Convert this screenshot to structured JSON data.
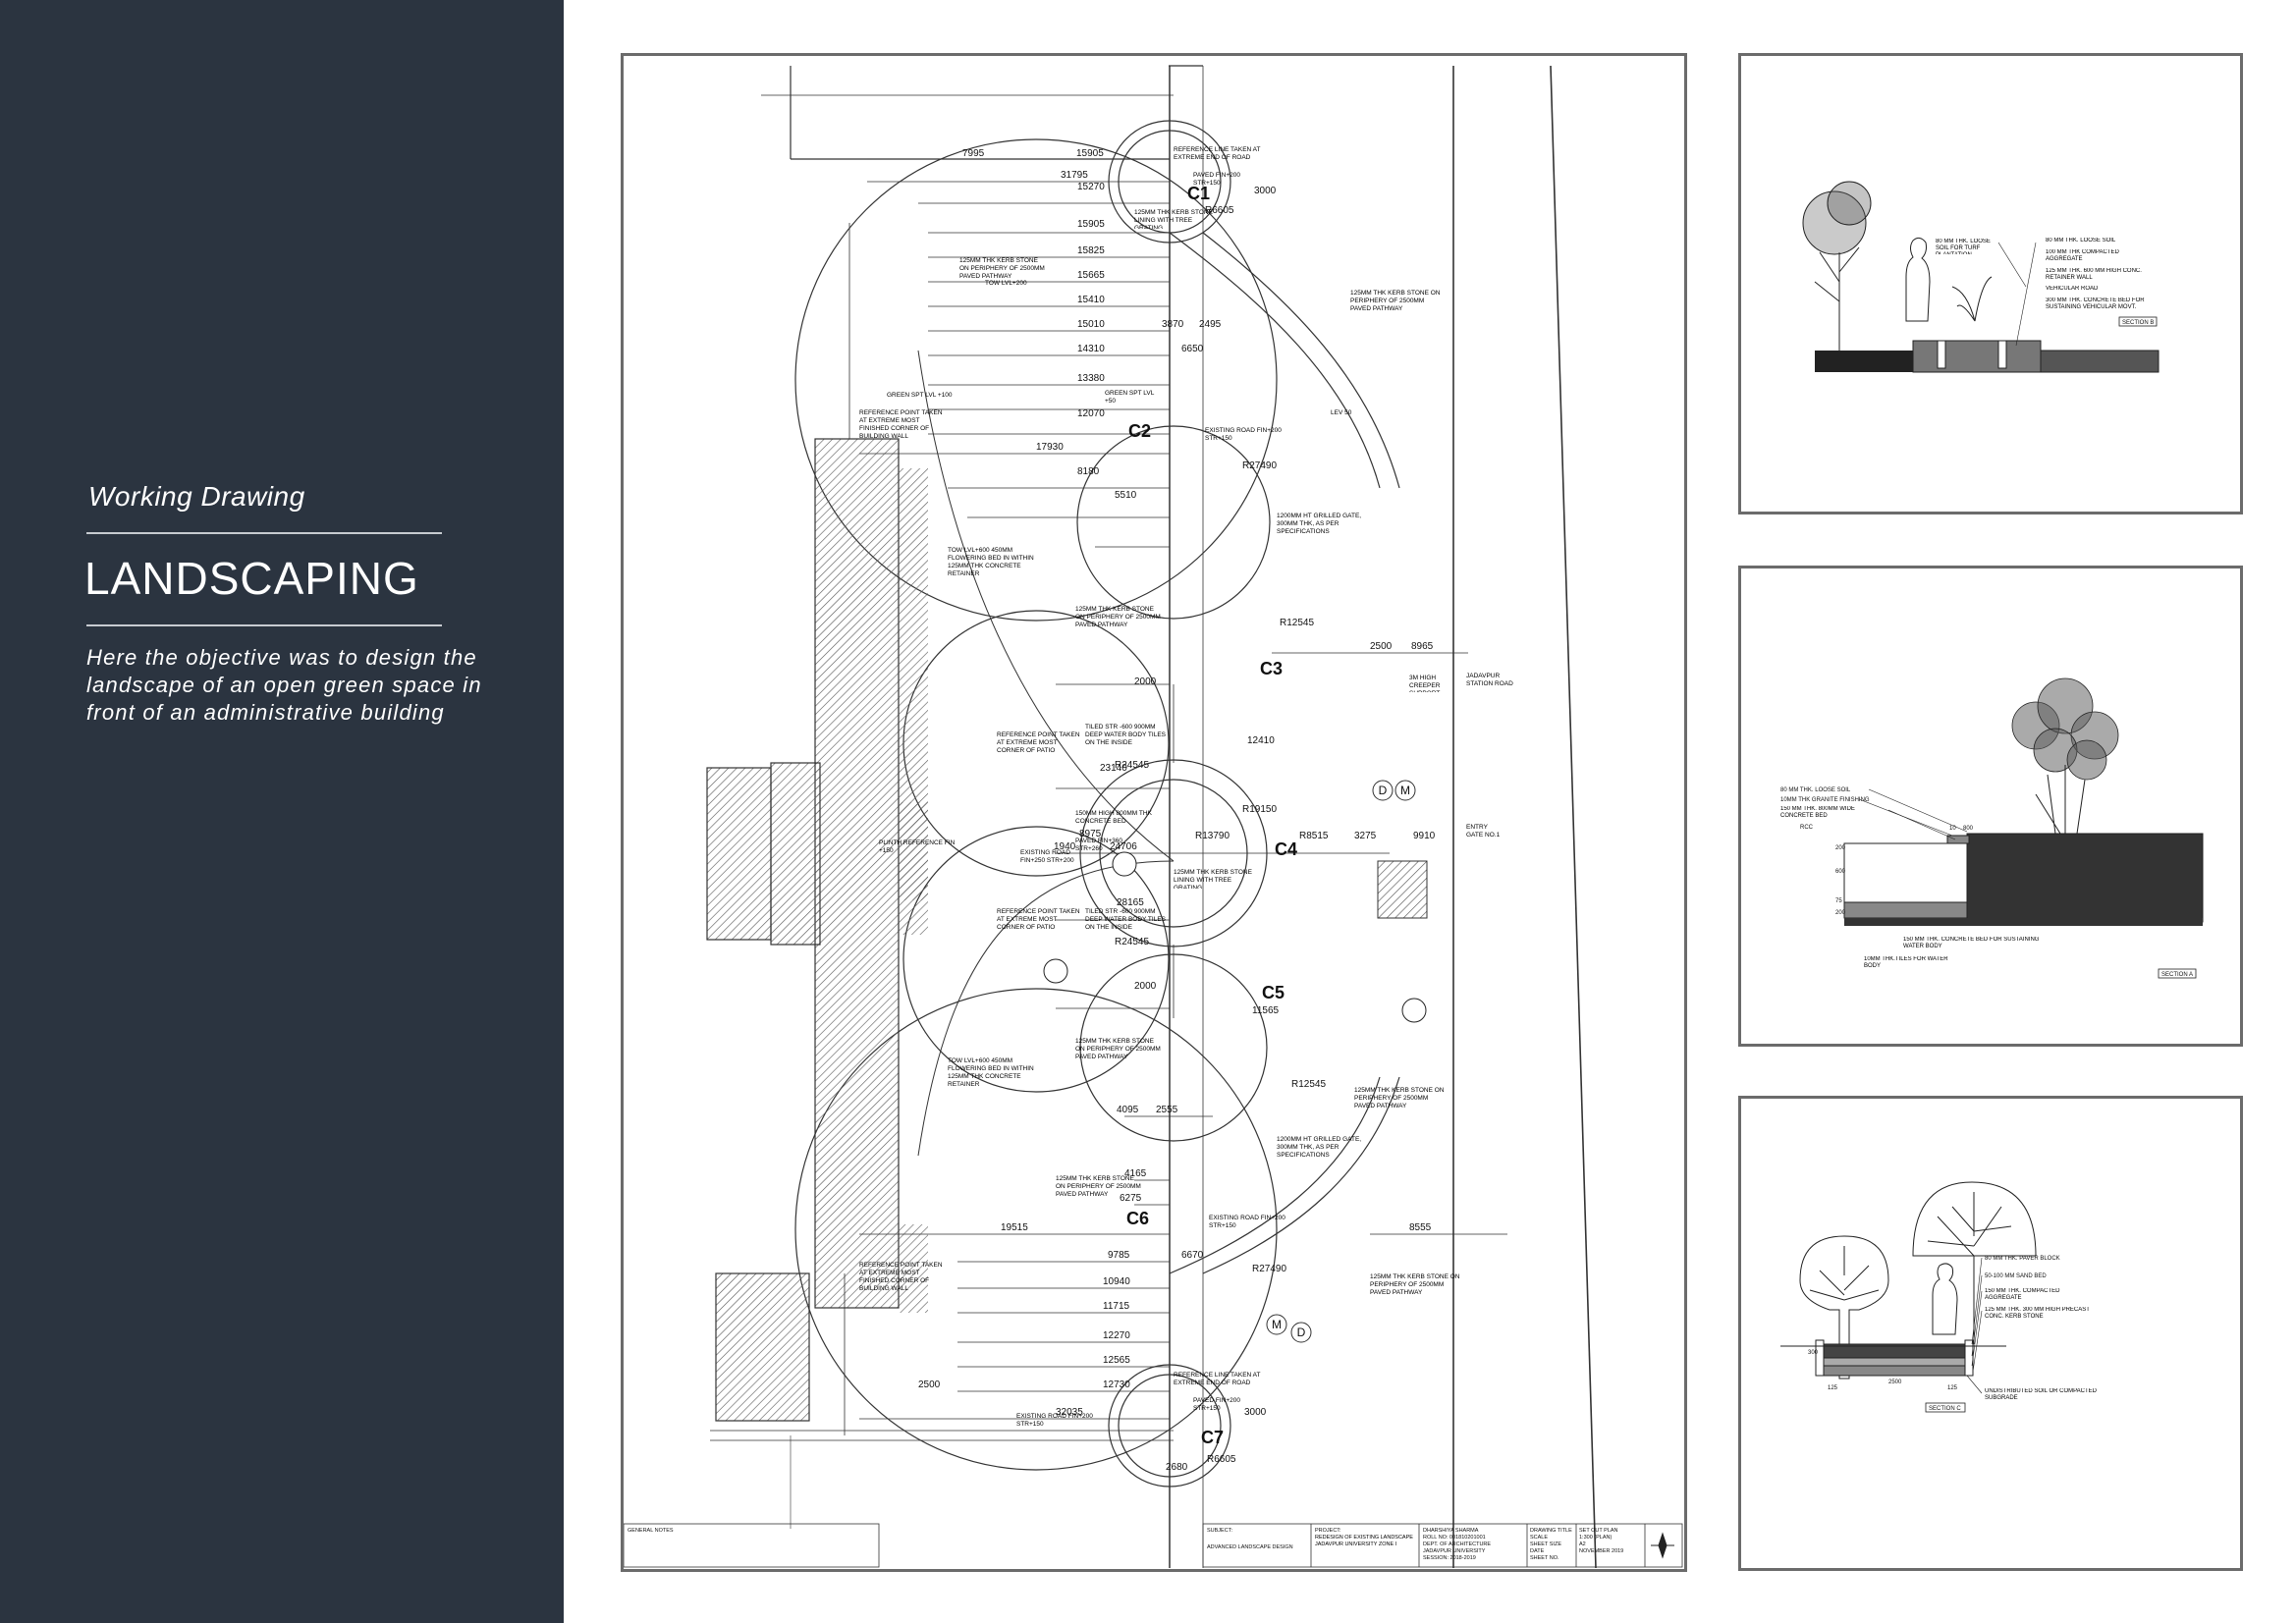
{
  "sidebar": {
    "kicker": "Working Drawing",
    "title": "LANDSCAPING",
    "description": "Here the objective was to design the landscape of an open green space in front of an administrative building"
  },
  "plan": {
    "circles": [
      "C1",
      "C2",
      "C3",
      "C4",
      "C5",
      "C6",
      "C7"
    ],
    "dims_top": [
      "7995",
      "15905",
      "31795",
      "15270",
      "3000",
      "15905",
      "15825",
      "15665",
      "15410",
      "15010",
      "3870",
      "2495",
      "14310",
      "6650",
      "13380",
      "12070",
      "17930",
      "8180",
      "5510"
    ],
    "dims_mid": [
      "2500",
      "8965",
      "2000",
      "23140",
      "12410",
      "8975",
      "1940",
      "24706",
      "R13790",
      "R8515",
      "3275",
      "9910",
      "28165",
      "2000",
      "11565"
    ],
    "dims_bottom": [
      "4095",
      "2555",
      "4165",
      "6275",
      "19515",
      "9785",
      "6670",
      "10940",
      "11715",
      "12270",
      "12565",
      "12730",
      "32035",
      "2500",
      "8555",
      "3000",
      "2680"
    ],
    "radii": [
      "R6605",
      "R27490",
      "R12545",
      "R24545",
      "R19150",
      "R24545",
      "R12545",
      "R27490",
      "R6605"
    ],
    "labels": {
      "ref_line_top": "REFERENCE LINE TAKEN AT EXTREME END OF ROAD",
      "paved_top": "PAVED FIN+200 STR+150",
      "kerb_tree": "125MM THK KERB STONE LINING WITH TREE GRATING",
      "kerb_path": "125MM THK KERB STONE ON PERIPHERY OF 2500MM PAVED PATHWAY",
      "tow_200": "TOW LVL+200",
      "green_100": "GREEN SPT LVL +100",
      "ref_point_wall": "REFERENCE POINT TAKEN AT EXTREME MOST FINISHED CORNER OF BUILDING WALL",
      "existing_road": "EXISTING ROAD FIN+200 STR+150",
      "green_50": "GREEN SPT LVL +50",
      "lev": "LEV 50",
      "gate": "1200MM HT GRILLED GATE, 300MM THK, AS PER SPECIFICATIONS",
      "flower_bed": "TOW LVL+600 450MM FLOWERING BED IN WITHIN 125MM THK CONCRETE RETAINER",
      "creeper": "3M HIGH CREEPER SUPPORT",
      "jadavpur_road": "JADAVPUR STATION ROAD",
      "entry_gate": "ENTRY GATE NO.1",
      "plinth": "PLINTH REFERENCE FIN +150",
      "ref_point_patio": "REFERENCE POINT TAKEN AT EXTREME MOST CORNER OF PATIO",
      "tiled_water": "TILED STR -600 900MM DEEP WATER BODY TILES ON THE INSIDE",
      "concrete_bed": "150MM HIGH 800MM THK CONCRETE BED",
      "paved_fin": "PAVED FIN+360 STR+260",
      "existing_road_2": "EXISTING ROAD FIN+250 STR+200",
      "md_1": "D",
      "md_2": "M"
    },
    "title_block": {
      "subject_label": "SUBJECT:",
      "subject": "ADVANCED LANDSCAPE DESIGN",
      "project_label": "PROJECT:",
      "project": "REDESIGN OF EXISTING LANDSCAPE JADAVPUR UNIVERSITY ZONE I",
      "student": "DHARSHIYA SHARMA",
      "roll": "ROLL NO: 001810201001",
      "dept": "DEPT. OF ARCHITECTURE",
      "univ": "JADAVPUR UNIVERSITY",
      "session": "SESSION: 2018-2019",
      "drawing_title_label": "DRAWING TITLE",
      "drawing_title": "SET OUT PLAN",
      "scale_label": "SCALE",
      "scale": "1:300 (PLAN)",
      "sheet_size_label": "SHEET SIZE",
      "sheet_size": "A2",
      "date_label": "DATE",
      "date": "NOVEMBER 2019",
      "sheet_no_label": "SHEET NO."
    },
    "notes_title": "GENERAL NOTES"
  },
  "section1": {
    "notes": [
      "80 MM THK. LOOSE SOIL",
      "100 MM THK COMPACTED AGGREGATE",
      "125 MM THK. 600 MM HIGH CONC. RETAINER WALL",
      "VEHICULAR ROAD",
      "300 MM THK. CONCRETE BED FOR SUSTAINING VEHICULAR MOVT."
    ],
    "left_note": "80 MM THK. LOOSE SOIL FOR TURF PLANTATION",
    "tag": "SECTION B"
  },
  "section2": {
    "notes": [
      "80 MM THK. LOOSE SOIL",
      "10MM THK GRANITE FINISHING",
      "150 MM THK. 800MM WIDE CONCRETE BED",
      "RCC"
    ],
    "bottom_notes": [
      "150 MM THK. CONCRETE BED FOR SUSTAINING WATER BODY",
      "10MM THK.TILES FOR WATER BODY"
    ],
    "dims": [
      "10",
      "800",
      "200",
      "600",
      "75",
      "200"
    ],
    "tag": "SECTION A"
  },
  "section3": {
    "notes": [
      "80 MM THK. PAVER BLOCK",
      "50-100 MM SAND BED",
      "150 MM THK. COMPACTED AGGREGATE",
      "125 MM THK. 300 MM HIGH PRECAST CONC. KERB STONE"
    ],
    "bottom_note": "UNDISTRIBUTED SOIL OR COMPACTED SUBGRADE",
    "dims": [
      "125",
      "2500",
      "125",
      "300"
    ],
    "tag": "SECTION C"
  }
}
